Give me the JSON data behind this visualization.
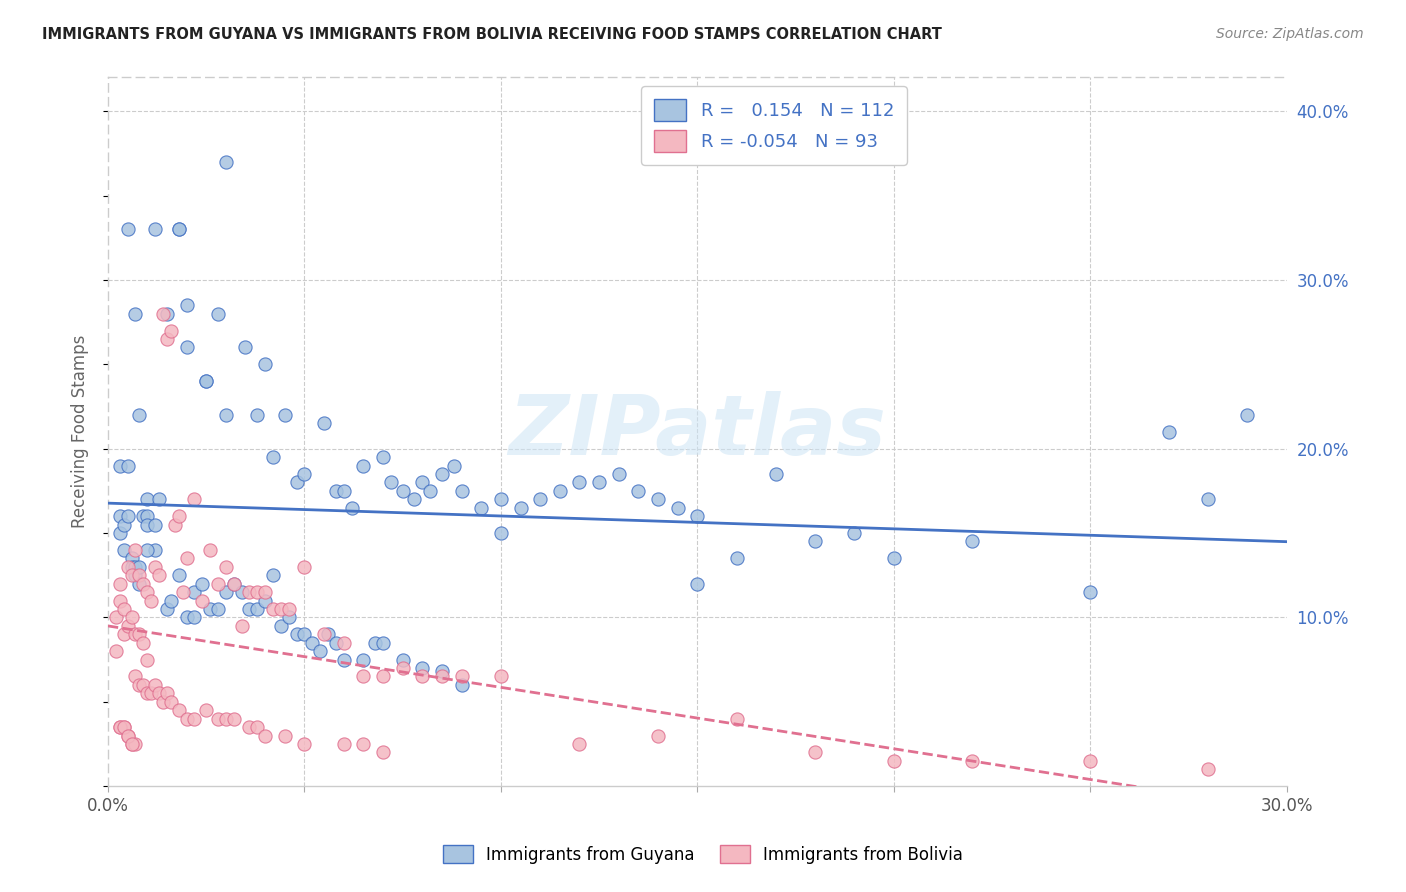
{
  "title": "IMMIGRANTS FROM GUYANA VS IMMIGRANTS FROM BOLIVIA RECEIVING FOOD STAMPS CORRELATION CHART",
  "source": "Source: ZipAtlas.com",
  "ylabel": "Receiving Food Stamps",
  "legend_label1": "Immigrants from Guyana",
  "legend_label2": "Immigrants from Bolivia",
  "R1": 0.154,
  "N1": 112,
  "R2": -0.054,
  "N2": 93,
  "xlim": [
    0.0,
    0.3
  ],
  "ylim": [
    0.0,
    0.42
  ],
  "color_guyana": "#a8c4e0",
  "color_bolivia": "#f4b8c1",
  "line_color_guyana": "#4472c4",
  "line_color_bolivia": "#e07090",
  "background_color": "#ffffff",
  "watermark": "ZIPatlas",
  "guyana_x": [
    0.003,
    0.003,
    0.003,
    0.004,
    0.004,
    0.005,
    0.005,
    0.006,
    0.006,
    0.007,
    0.007,
    0.008,
    0.008,
    0.009,
    0.01,
    0.01,
    0.01,
    0.012,
    0.012,
    0.013,
    0.015,
    0.016,
    0.018,
    0.018,
    0.02,
    0.02,
    0.022,
    0.022,
    0.024,
    0.025,
    0.026,
    0.028,
    0.028,
    0.03,
    0.03,
    0.032,
    0.034,
    0.035,
    0.036,
    0.038,
    0.038,
    0.04,
    0.04,
    0.042,
    0.042,
    0.044,
    0.045,
    0.046,
    0.048,
    0.048,
    0.05,
    0.05,
    0.052,
    0.054,
    0.055,
    0.056,
    0.058,
    0.058,
    0.06,
    0.06,
    0.062,
    0.065,
    0.065,
    0.068,
    0.07,
    0.07,
    0.072,
    0.075,
    0.075,
    0.078,
    0.08,
    0.08,
    0.082,
    0.085,
    0.085,
    0.088,
    0.09,
    0.09,
    0.095,
    0.1,
    0.1,
    0.105,
    0.11,
    0.115,
    0.12,
    0.125,
    0.13,
    0.135,
    0.14,
    0.145,
    0.15,
    0.15,
    0.16,
    0.17,
    0.18,
    0.19,
    0.2,
    0.22,
    0.25,
    0.27,
    0.28,
    0.29,
    0.005,
    0.007,
    0.008,
    0.01,
    0.012,
    0.015,
    0.018,
    0.02,
    0.025,
    0.03
  ],
  "guyana_y": [
    0.19,
    0.16,
    0.15,
    0.14,
    0.155,
    0.19,
    0.16,
    0.135,
    0.13,
    0.13,
    0.125,
    0.13,
    0.12,
    0.16,
    0.16,
    0.155,
    0.17,
    0.155,
    0.14,
    0.17,
    0.105,
    0.11,
    0.125,
    0.33,
    0.1,
    0.285,
    0.1,
    0.115,
    0.12,
    0.24,
    0.105,
    0.105,
    0.28,
    0.115,
    0.22,
    0.12,
    0.115,
    0.26,
    0.105,
    0.105,
    0.22,
    0.11,
    0.25,
    0.125,
    0.195,
    0.095,
    0.22,
    0.1,
    0.09,
    0.18,
    0.09,
    0.185,
    0.085,
    0.08,
    0.215,
    0.09,
    0.085,
    0.175,
    0.075,
    0.175,
    0.165,
    0.075,
    0.19,
    0.085,
    0.085,
    0.195,
    0.18,
    0.075,
    0.175,
    0.17,
    0.18,
    0.07,
    0.175,
    0.068,
    0.185,
    0.19,
    0.06,
    0.175,
    0.165,
    0.15,
    0.17,
    0.165,
    0.17,
    0.175,
    0.18,
    0.18,
    0.185,
    0.175,
    0.17,
    0.165,
    0.16,
    0.12,
    0.135,
    0.185,
    0.145,
    0.15,
    0.135,
    0.145,
    0.115,
    0.21,
    0.17,
    0.22,
    0.33,
    0.28,
    0.22,
    0.14,
    0.33,
    0.28,
    0.33,
    0.26,
    0.24,
    0.37
  ],
  "bolivia_x": [
    0.002,
    0.002,
    0.003,
    0.003,
    0.003,
    0.004,
    0.004,
    0.004,
    0.005,
    0.005,
    0.005,
    0.006,
    0.006,
    0.006,
    0.007,
    0.007,
    0.007,
    0.007,
    0.008,
    0.008,
    0.008,
    0.009,
    0.009,
    0.009,
    0.01,
    0.01,
    0.01,
    0.011,
    0.011,
    0.012,
    0.012,
    0.013,
    0.013,
    0.014,
    0.014,
    0.015,
    0.015,
    0.016,
    0.016,
    0.017,
    0.018,
    0.018,
    0.019,
    0.02,
    0.02,
    0.022,
    0.022,
    0.024,
    0.025,
    0.026,
    0.028,
    0.028,
    0.03,
    0.03,
    0.032,
    0.032,
    0.034,
    0.036,
    0.036,
    0.038,
    0.038,
    0.04,
    0.04,
    0.042,
    0.044,
    0.045,
    0.046,
    0.05,
    0.05,
    0.055,
    0.06,
    0.06,
    0.065,
    0.065,
    0.07,
    0.07,
    0.075,
    0.08,
    0.085,
    0.09,
    0.1,
    0.12,
    0.14,
    0.16,
    0.18,
    0.2,
    0.22,
    0.25,
    0.28,
    0.003,
    0.004,
    0.005,
    0.006
  ],
  "bolivia_y": [
    0.1,
    0.08,
    0.12,
    0.11,
    0.035,
    0.105,
    0.09,
    0.035,
    0.13,
    0.095,
    0.03,
    0.125,
    0.1,
    0.025,
    0.14,
    0.09,
    0.065,
    0.025,
    0.125,
    0.09,
    0.06,
    0.12,
    0.085,
    0.06,
    0.115,
    0.075,
    0.055,
    0.11,
    0.055,
    0.13,
    0.06,
    0.125,
    0.055,
    0.28,
    0.05,
    0.265,
    0.055,
    0.27,
    0.05,
    0.155,
    0.16,
    0.045,
    0.115,
    0.135,
    0.04,
    0.17,
    0.04,
    0.11,
    0.045,
    0.14,
    0.12,
    0.04,
    0.13,
    0.04,
    0.12,
    0.04,
    0.095,
    0.115,
    0.035,
    0.115,
    0.035,
    0.115,
    0.03,
    0.105,
    0.105,
    0.03,
    0.105,
    0.13,
    0.025,
    0.09,
    0.085,
    0.025,
    0.065,
    0.025,
    0.065,
    0.02,
    0.07,
    0.065,
    0.065,
    0.065,
    0.065,
    0.025,
    0.03,
    0.04,
    0.02,
    0.015,
    0.015,
    0.015,
    0.01,
    0.035,
    0.035,
    0.03,
    0.025
  ]
}
